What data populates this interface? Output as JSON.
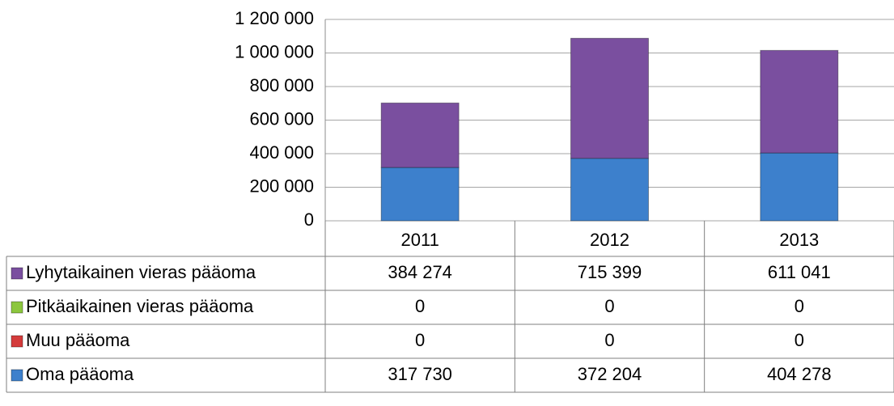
{
  "chart_data": {
    "type": "stacked_bar",
    "categories": [
      "2011",
      "2012",
      "2013"
    ],
    "series": [
      {
        "name": "Lyhytaikainen vieras pääoma",
        "color": "#7a4f9f",
        "values": [
          384274,
          715399,
          611041
        ],
        "value_labels": [
          "384 274",
          "715 399",
          "611 041"
        ]
      },
      {
        "name": "Pitkäaikainen vieras pääoma",
        "color": "#8cc63e",
        "values": [
          0,
          0,
          0
        ],
        "value_labels": [
          "0",
          "0",
          "0"
        ]
      },
      {
        "name": "Muu pääoma",
        "color": "#d43b3b",
        "values": [
          0,
          0,
          0
        ],
        "value_labels": [
          "0",
          "0",
          "0"
        ]
      },
      {
        "name": "Oma pääoma",
        "color": "#3d80cc",
        "values": [
          317730,
          372204,
          404278
        ],
        "value_labels": [
          "317 730",
          "372 204",
          "404 278"
        ]
      }
    ],
    "ylim": [
      0,
      1200000
    ],
    "yticks": [
      0,
      {
        "value": 200000,
        "label": "200 000"
      },
      {
        "value": 400000,
        "label": "400 000"
      },
      {
        "value": 600000,
        "label": "600 000"
      },
      {
        "value": 800000,
        "label": "800 000"
      },
      {
        "value": 1000000,
        "label": "1 000 000"
      },
      {
        "value": 1200000,
        "label": "1 200 000"
      }
    ],
    "grid": true
  }
}
